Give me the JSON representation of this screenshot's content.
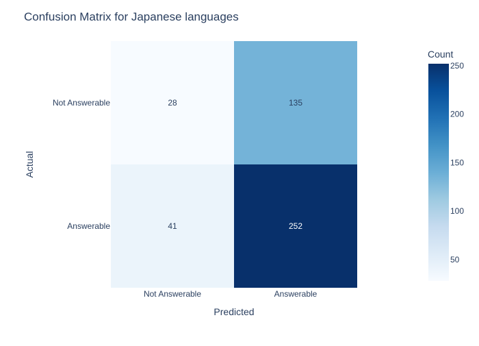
{
  "chart_data": {
    "type": "heatmap",
    "title": "Confusion Matrix for Japanese languages",
    "xlabel": "Predicted",
    "ylabel": "Actual",
    "x_categories": [
      "Not Answerable",
      "Answerable"
    ],
    "y_categories": [
      "Not Answerable",
      "Answerable"
    ],
    "values": [
      [
        28,
        135
      ],
      [
        41,
        252
      ]
    ],
    "colorbar": {
      "title": "Count",
      "range": [
        28,
        252
      ],
      "ticks": [
        50,
        100,
        150,
        200,
        250
      ],
      "colorscale": [
        "#f7fbff",
        "#deebf7",
        "#c6dbef",
        "#9ecae1",
        "#6baed6",
        "#4292c6",
        "#2171b5",
        "#08519c",
        "#08306b"
      ]
    },
    "grid": false
  }
}
